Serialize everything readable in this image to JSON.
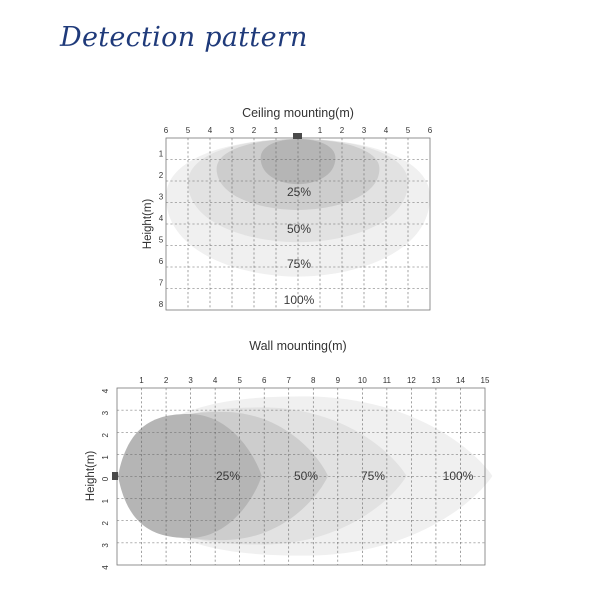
{
  "page": {
    "title": "Detection pattern"
  },
  "ceiling": {
    "caption": "Ceiling mounting(m)",
    "y_axis_label": "Height(m)",
    "x_ticks": [
      "6",
      "5",
      "4",
      "3",
      "2",
      "1",
      "",
      "1",
      "2",
      "3",
      "4",
      "5",
      "6"
    ],
    "y_ticks": [
      "1",
      "2",
      "3",
      "4",
      "5",
      "6",
      "7",
      "8"
    ],
    "zones": [
      {
        "label": "100%",
        "half_width_m": 6,
        "depth_m": 6.4,
        "color": "#f0f0f0"
      },
      {
        "label": "75%",
        "half_width_m": 5,
        "depth_m": 4.8,
        "color": "#e2e2e2"
      },
      {
        "label": "50%",
        "half_width_m": 3.7,
        "depth_m": 3.3,
        "color": "#cdcdcd"
      },
      {
        "label": "25%",
        "half_width_m": 1.7,
        "depth_m": 2.1,
        "color": "#b5b5b5"
      }
    ]
  },
  "wall": {
    "caption": "Wall mounting(m)",
    "y_axis_label": "Height(m)",
    "x_ticks": [
      "1",
      "2",
      "3",
      "4",
      "5",
      "6",
      "7",
      "8",
      "9",
      "10",
      "11",
      "12",
      "13",
      "14",
      "15"
    ],
    "y_ticks_upper": [
      "4",
      "3",
      "2",
      "1"
    ],
    "y_ticks_lower": [
      "1",
      "2",
      "3",
      "4"
    ],
    "y_center_label": "0",
    "zones": [
      {
        "label": "100%",
        "reach_m": 15.3,
        "half_height_m": 3.6,
        "color": "#f0f0f0"
      },
      {
        "label": "75%",
        "reach_m": 11.8,
        "half_height_m": 3.1,
        "color": "#e2e2e2"
      },
      {
        "label": "50%",
        "reach_m": 8.6,
        "half_height_m": 2.9,
        "color": "#cdcdcd"
      },
      {
        "label": "25%",
        "reach_m": 5.9,
        "half_height_m": 2.8,
        "color": "#b5b5b5"
      }
    ]
  }
}
